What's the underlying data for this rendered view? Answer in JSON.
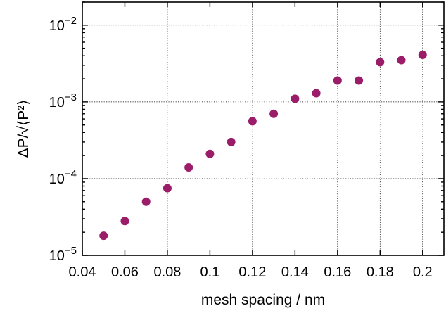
{
  "chart_data": {
    "type": "scatter",
    "xlabel": "mesh spacing / nm",
    "ylabel": "ΔP/√⟨P²⟩",
    "x_scale": "linear",
    "y_scale": "log",
    "xlim": [
      0.04,
      0.21
    ],
    "ylim": [
      1e-05,
      0.02
    ],
    "grid": true,
    "x_ticks": [
      {
        "value": 0.04,
        "label": "0.04"
      },
      {
        "value": 0.06,
        "label": "0.06"
      },
      {
        "value": 0.08,
        "label": "0.08"
      },
      {
        "value": 0.1,
        "label": "0.1"
      },
      {
        "value": 0.12,
        "label": "0.12"
      },
      {
        "value": 0.14,
        "label": "0.14"
      },
      {
        "value": 0.16,
        "label": "0.16"
      },
      {
        "value": 0.18,
        "label": "0.18"
      },
      {
        "value": 0.2,
        "label": "0.2"
      }
    ],
    "y_ticks": [
      {
        "value": 1e-05,
        "base": "10",
        "exp": "−5"
      },
      {
        "value": 0.0001,
        "base": "10",
        "exp": "−4"
      },
      {
        "value": 0.001,
        "base": "10",
        "exp": "−3"
      },
      {
        "value": 0.01,
        "base": "10",
        "exp": "−2"
      }
    ],
    "marker_color": "#9b1d6a",
    "series": [
      {
        "x": [
          0.05,
          0.06,
          0.07,
          0.08,
          0.09,
          0.1,
          0.11,
          0.12,
          0.13,
          0.14,
          0.15,
          0.16,
          0.17,
          0.18,
          0.19,
          0.2
        ],
        "y": [
          1.8e-05,
          2.8e-05,
          5e-05,
          7.5e-05,
          0.00014,
          0.00021,
          0.0003,
          0.00056,
          0.0007,
          0.0011,
          0.0013,
          0.0019,
          0.0019,
          0.0033,
          0.0035,
          0.0041
        ]
      }
    ]
  }
}
